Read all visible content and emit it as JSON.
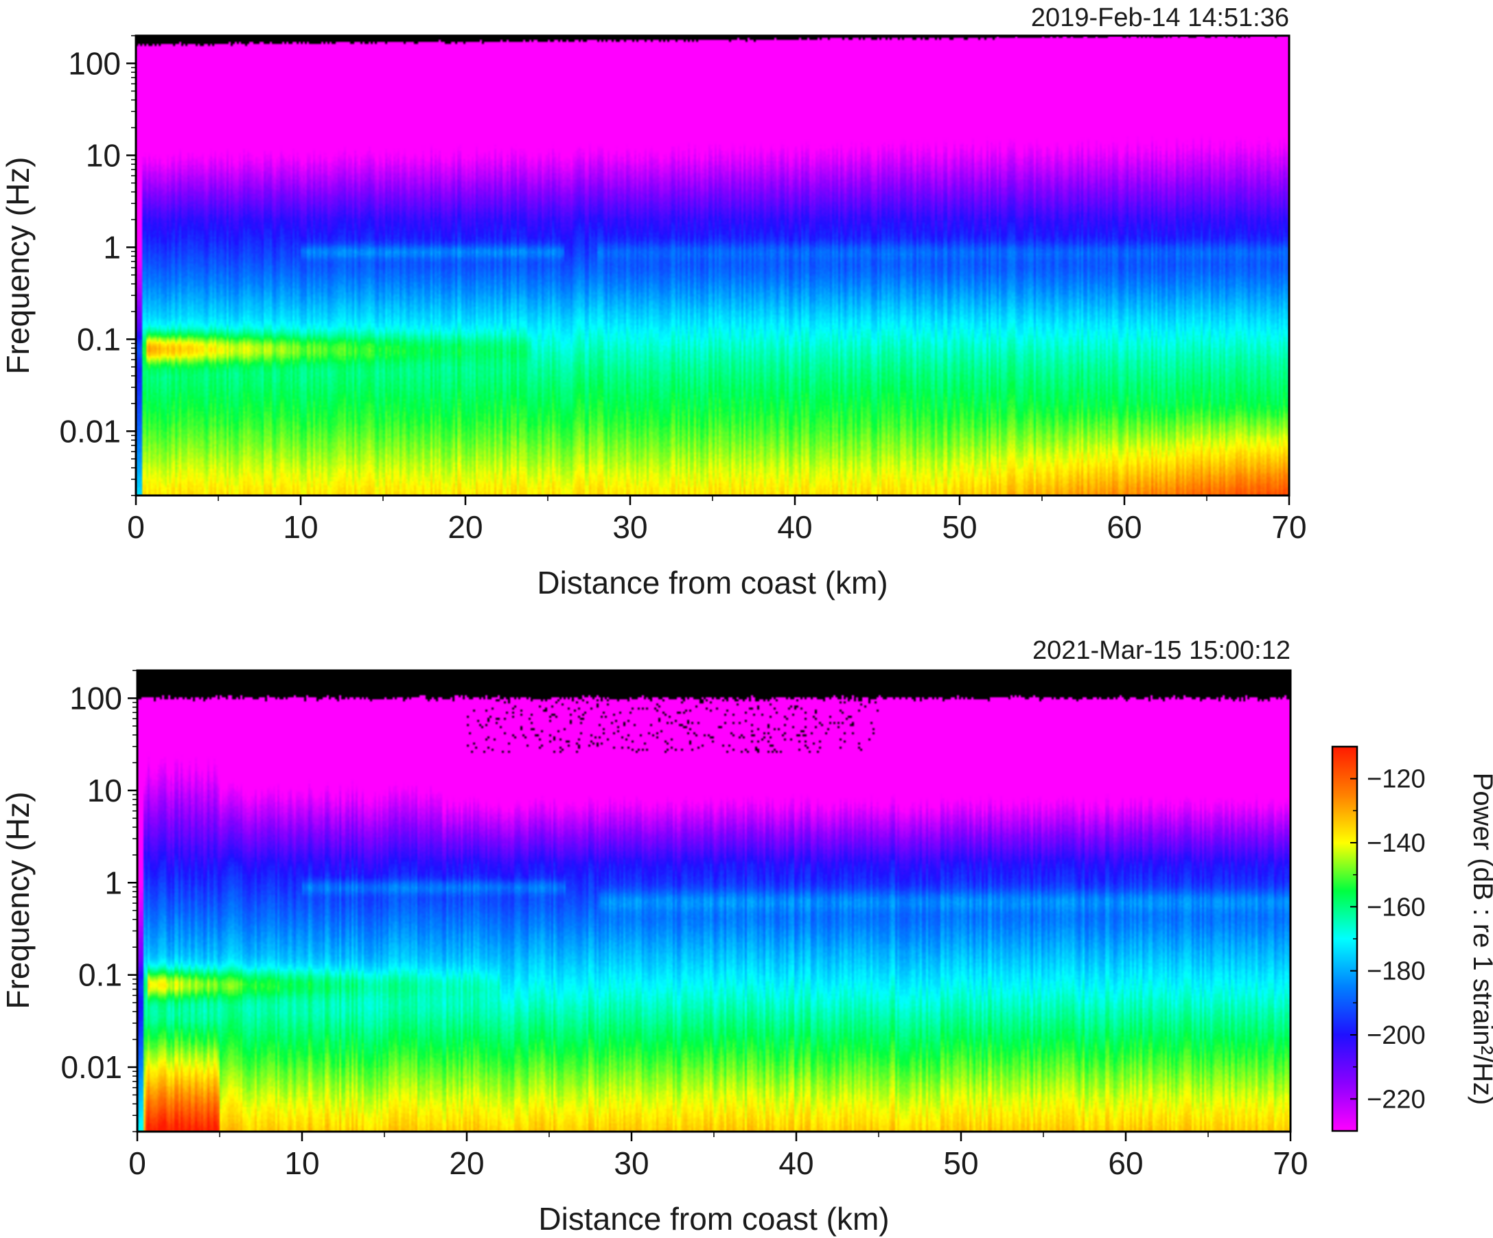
{
  "chart_data": [
    {
      "type": "heatmap",
      "timestamp": "2019-Feb-14 14:51:36",
      "xlabel": "Distance from coast (km)",
      "ylabel": "Frequency (Hz)",
      "xlim": [
        0,
        70
      ],
      "ylim": [
        0.002,
        200
      ],
      "yscale": "log",
      "x_ticks": [
        0,
        10,
        20,
        30,
        40,
        50,
        60,
        70
      ],
      "x_tick_labels": [
        "0",
        "10",
        "20",
        "30",
        "40",
        "50",
        "60",
        "70"
      ],
      "y_ticks": [
        100,
        10,
        1,
        0.1,
        0.01
      ],
      "y_tick_labels": [
        "100",
        "10",
        "1",
        "0.1",
        "0.01"
      ],
      "data_top_freq": 160,
      "data_top_freq_far": 200,
      "features": {
        "microseism_peak": {
          "freq_hz": 0.08,
          "x_range_km": [
            0.5,
            17
          ],
          "power_db": -115
        },
        "low_freq_rise": {
          "freq_max_hz": 0.015,
          "x_range_km": [
            52,
            70
          ],
          "power_db": -125
        }
      }
    },
    {
      "type": "heatmap",
      "timestamp": "2021-Mar-15 15:00:12",
      "xlabel": "Distance from coast (km)",
      "ylabel": "Frequency (Hz)",
      "xlim": [
        0,
        70
      ],
      "ylim": [
        0.002,
        200
      ],
      "yscale": "log",
      "x_ticks": [
        0,
        10,
        20,
        30,
        40,
        50,
        60,
        70
      ],
      "x_tick_labels": [
        "0",
        "10",
        "20",
        "30",
        "40",
        "50",
        "60",
        "70"
      ],
      "y_ticks": [
        100,
        10,
        1,
        0.1,
        0.01
      ],
      "y_tick_labels": [
        "100",
        "10",
        "1",
        "0.1",
        "0.01"
      ],
      "data_top_freq": 100,
      "features": {
        "microseism_peak": {
          "freq_hz": 0.08,
          "x_range_km": [
            0.5,
            14
          ],
          "power_db": -118
        },
        "nearshore_low_freq": {
          "freq_max_hz": 0.02,
          "x_range_km": [
            0.5,
            5
          ],
          "power_db": -125
        },
        "noise_floor_step_km": 18.5
      }
    }
  ],
  "colorbar": {
    "label": "Power (dB : re 1 strain²/Hz)",
    "range": [
      -230,
      -110
    ],
    "ticks": [
      -120,
      -140,
      -160,
      -180,
      -200,
      -220
    ],
    "tick_labels": [
      "−120",
      "−140",
      "−160",
      "−180",
      "−200",
      "−220"
    ],
    "colors": [
      "#ff00ff",
      "#8a00ff",
      "#1f10ff",
      "#0080ff",
      "#00ffff",
      "#00ff40",
      "#ffff00",
      "#ff8000",
      "#ff1a00"
    ]
  }
}
